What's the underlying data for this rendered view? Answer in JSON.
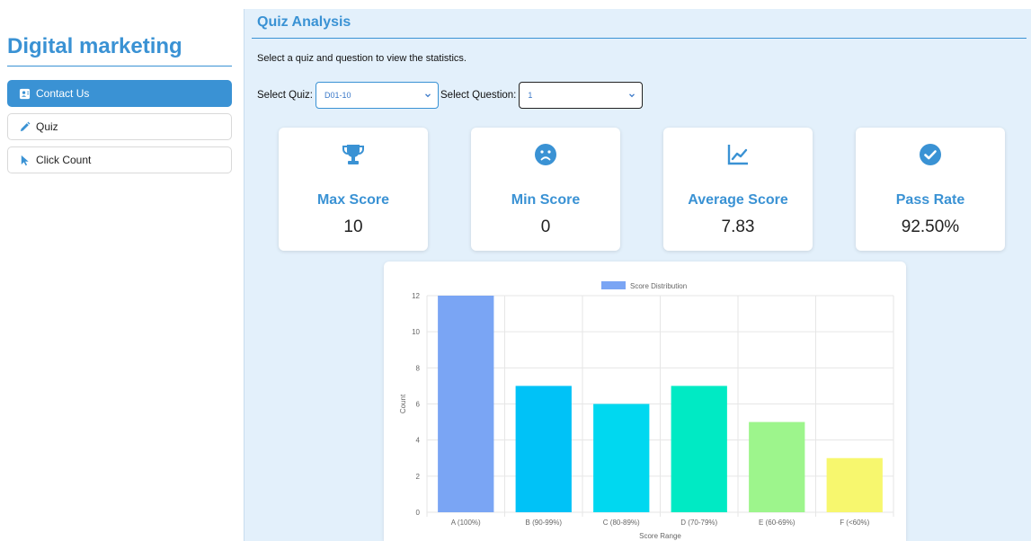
{
  "sidebar": {
    "brand": "Digital marketing",
    "items": [
      {
        "label": "Contact Us",
        "icon": "contact-card-icon",
        "active": true
      },
      {
        "label": "Quiz",
        "icon": "pencil-icon",
        "active": false
      },
      {
        "label": "Click Count",
        "icon": "pointer-icon",
        "active": false
      }
    ]
  },
  "main": {
    "title": "Quiz Analysis",
    "subtitle": "Select a quiz and question to view the statistics.",
    "filters": {
      "quiz_label": "Select Quiz:",
      "quiz_value": "D01-10",
      "question_label": "Select Question:",
      "question_value": "1"
    },
    "stats": [
      {
        "label": "Max Score",
        "value": "10",
        "icon": "trophy-icon"
      },
      {
        "label": "Min Score",
        "value": "0",
        "icon": "sad-face-icon"
      },
      {
        "label": "Average Score",
        "value": "7.83",
        "icon": "line-chart-icon"
      },
      {
        "label": "Pass Rate",
        "value": "92.50%",
        "icon": "check-circle-icon"
      }
    ]
  },
  "colors": {
    "accent": "#3a92d4",
    "main_bg": "#e3f0fb"
  },
  "chart_data": {
    "type": "bar",
    "legend": "Score Distribution",
    "legend_position": "top",
    "categories": [
      "A (100%)",
      "B (90-99%)",
      "C (80-89%)",
      "D (70-79%)",
      "E (60-69%)",
      "F (<60%)"
    ],
    "values": [
      12,
      7,
      6,
      7,
      5,
      3
    ],
    "colors": [
      "#7aa5f4",
      "#00c2f7",
      "#00d8f0",
      "#00eac4",
      "#9df58c",
      "#f7f76e"
    ],
    "xlabel": "Score Range",
    "ylabel": "Count",
    "ylim": [
      0,
      12
    ],
    "yticks": [
      0,
      2,
      4,
      6,
      8,
      10,
      12
    ],
    "grid": true
  }
}
